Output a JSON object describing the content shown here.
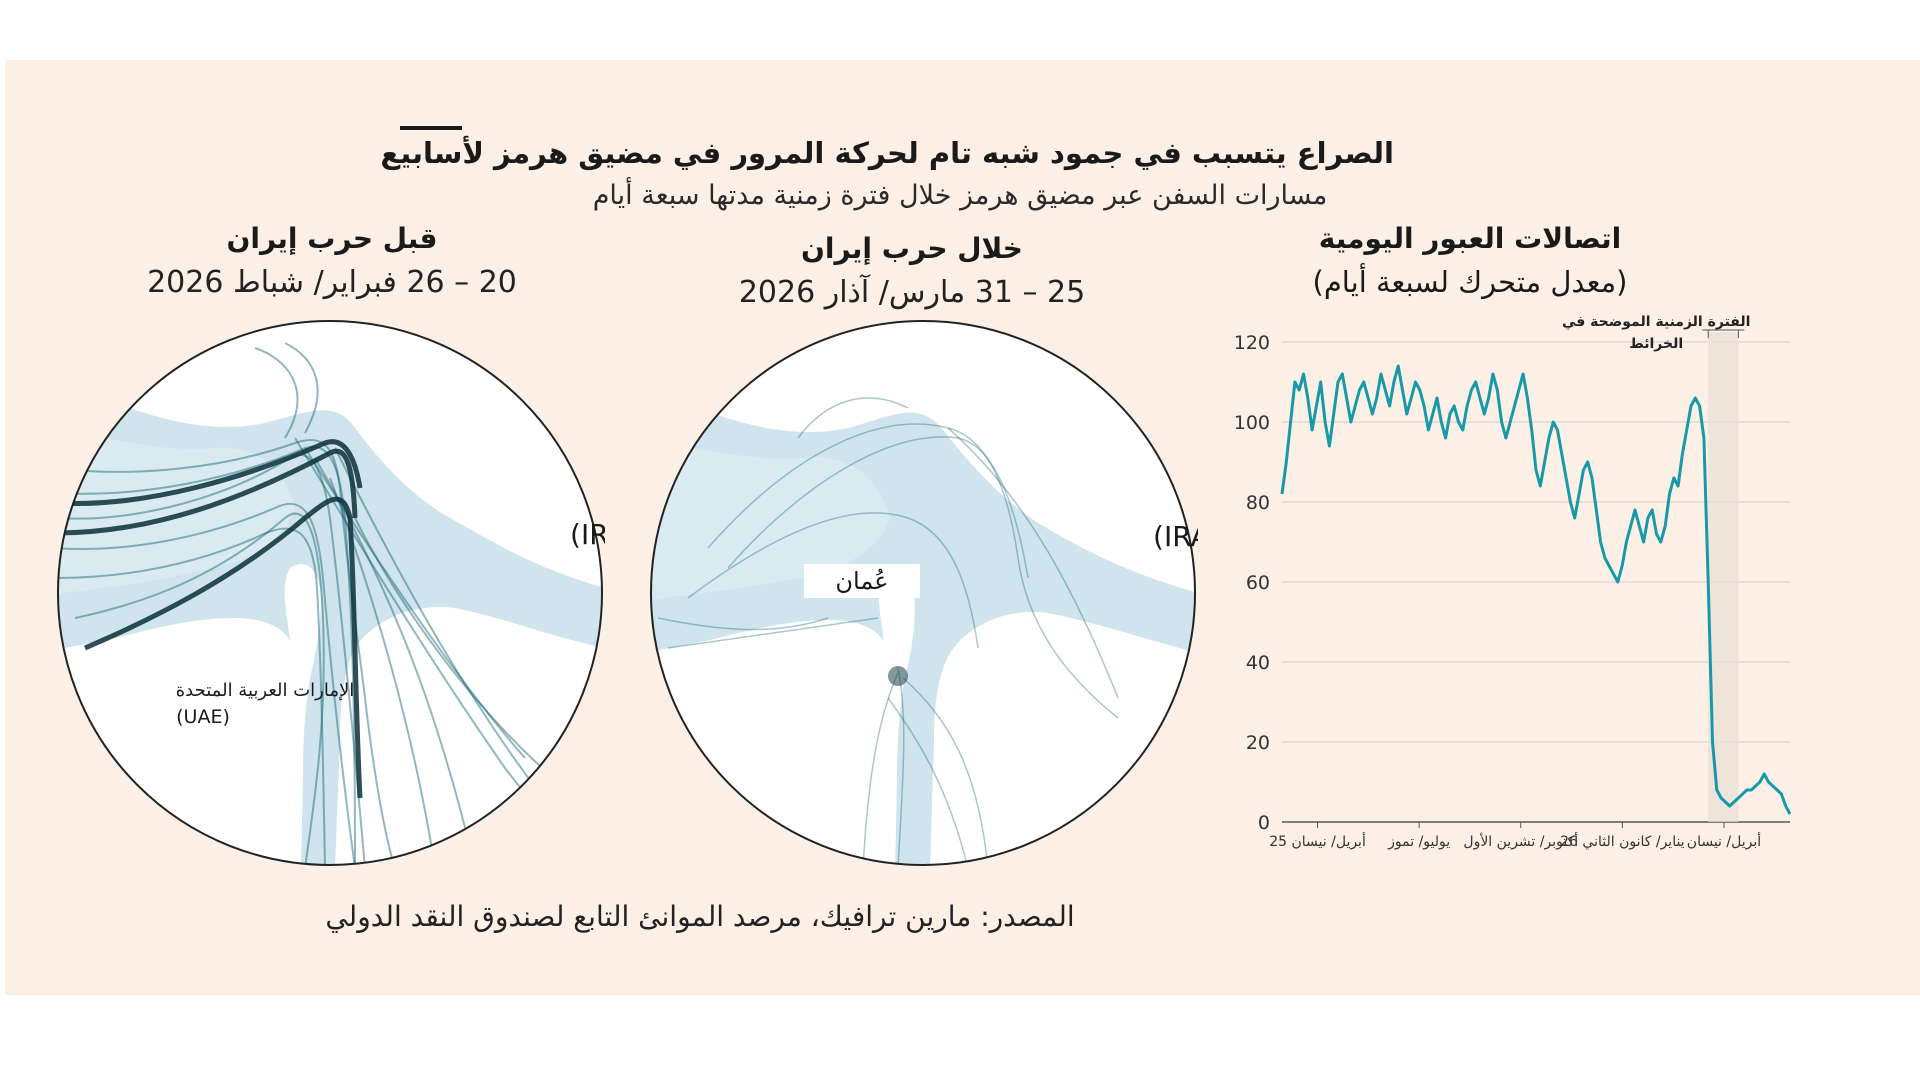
{
  "header": {
    "title": "الصراع يتسبب في جمود شبه تام لحركة المرور في مضيق هرمز لأسابيع",
    "subtitle": "مسارات السفن عبر مضيق هرمز خلال فترة زمنية مدتها سبعة أيام"
  },
  "maps": {
    "before": {
      "title": "قبل حرب إيران",
      "date": "20 – 26 فبراير/ شباط 2026",
      "label_iran": "إيران (IRAN)",
      "label_uae_ar": "الإمارات العربية المتحدة",
      "label_uae_en": "(UAE)"
    },
    "during": {
      "title": "خلال حرب إيران",
      "date": "25 – 31 مارس/ آذار 2026",
      "label_iran": "إيران (IRAN)",
      "label_oman": "عُمان"
    }
  },
  "colors": {
    "background": "#fcefe5",
    "sea": "#cfe4ec",
    "land": "#ffffff",
    "tracks": "#0f5f6e",
    "line": "#1799a8"
  },
  "chart_data": {
    "type": "line",
    "title": "اتصالات العبور اليومية",
    "subtitle": "(معدل متحرك لسبعة أيام)",
    "annotation": "الفترة الزمنية الموضحة في الخرائط",
    "ylim": [
      0,
      120
    ],
    "yticks": [
      0,
      20,
      40,
      60,
      80,
      100,
      120
    ],
    "xticks": [
      "أبريل/ نيسان 25",
      "يوليو/ تموز",
      "أكتوبر/ تشرين الأول",
      "يناير/ كانون الثاني 26",
      "أبريل/ نيسان"
    ],
    "grid": true,
    "series": [
      {
        "values": [
          82,
          90,
          100,
          110,
          108,
          112,
          106,
          98,
          104,
          110,
          100,
          94,
          102,
          110,
          112,
          106,
          100,
          104,
          108,
          110,
          106,
          102,
          106,
          112,
          108,
          104,
          110,
          114,
          108,
          102,
          106,
          110,
          108,
          104,
          98,
          102,
          106,
          100,
          96,
          102,
          104,
          100,
          98,
          104,
          108,
          110,
          106,
          102,
          106,
          112,
          108,
          100,
          96,
          100,
          104,
          108,
          112,
          106,
          98,
          88,
          84,
          90,
          96,
          100,
          98,
          92,
          86,
          80,
          76,
          82,
          88,
          90,
          86,
          78,
          70,
          66,
          64,
          62,
          60,
          64,
          70,
          74,
          78,
          74,
          70,
          76,
          78,
          72,
          70,
          74,
          82,
          86,
          84,
          92,
          98,
          104,
          106,
          104,
          96,
          60,
          20,
          8,
          6,
          5,
          4,
          5,
          6,
          7,
          8,
          8,
          9,
          10,
          12,
          10,
          9,
          8,
          7,
          4,
          2
        ]
      }
    ]
  },
  "source": "المصدر: مارين ترافيك، مرصد الموانئ التابع لصندوق النقد الدولي"
}
